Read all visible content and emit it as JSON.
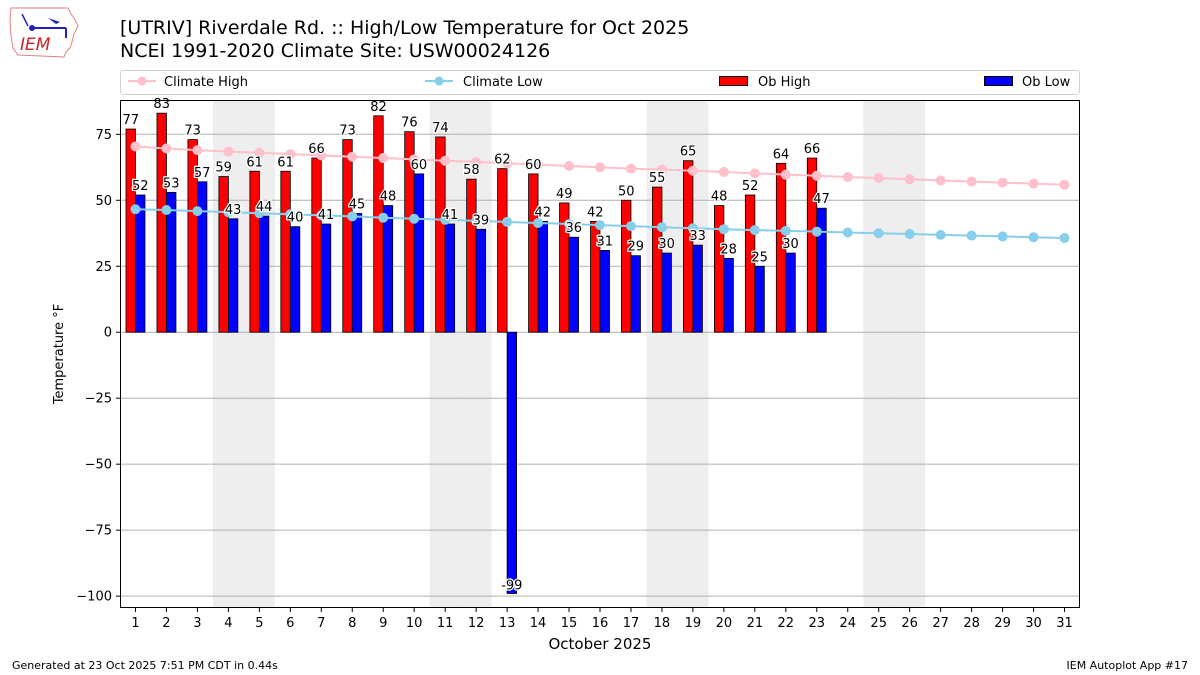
{
  "header": {
    "title_line1": "[UTRIV] Riverdale Rd.  :: High/Low Temperature for Oct 2025",
    "title_line2": "NCEI 1991-2020 Climate Site: USW00024126",
    "logo_text": "IEM"
  },
  "footer": {
    "left": "Generated at 23 Oct 2025 7:51 PM CDT in 0.44s",
    "right": "IEM Autoplot App #17"
  },
  "colors": {
    "ob_high": "#ff0000",
    "ob_low": "#0000ff",
    "climate_high": "#ffc0cb",
    "climate_low": "#87ceeb",
    "weekend_shade": "#eeeeee"
  },
  "chart_data": {
    "type": "bar",
    "xlabel": "October 2025",
    "ylabel": "Temperature °F",
    "ylim": [
      -104.5,
      88
    ],
    "xlim": [
      0.5,
      31.5
    ],
    "yticks": [
      -100,
      -75,
      -50,
      -25,
      0,
      25,
      50,
      75
    ],
    "grid": "horizontal",
    "legend_placement": "top",
    "weekend_shaded_days": [
      4,
      5,
      11,
      12,
      18,
      19,
      25,
      26
    ],
    "days": [
      1,
      2,
      3,
      4,
      5,
      6,
      7,
      8,
      9,
      10,
      11,
      12,
      13,
      14,
      15,
      16,
      17,
      18,
      19,
      20,
      21,
      22,
      23,
      24,
      25,
      26,
      27,
      28,
      29,
      30,
      31
    ],
    "series": [
      {
        "name": "Climate High",
        "type": "line",
        "values": [
          70.4,
          69.6,
          69.0,
          68.5,
          68.0,
          67.5,
          67.0,
          66.5,
          66.0,
          65.5,
          65.0,
          64.5,
          64.0,
          63.5,
          63.0,
          62.5,
          62.0,
          61.6,
          61.2,
          60.7,
          60.2,
          59.7,
          59.3,
          58.8,
          58.4,
          58.0,
          57.5,
          57.1,
          56.7,
          56.3,
          55.9
        ]
      },
      {
        "name": "Climate Low",
        "type": "line",
        "values": [
          46.6,
          46.3,
          45.9,
          45.5,
          45.1,
          44.7,
          44.3,
          43.9,
          43.4,
          43.0,
          42.6,
          42.2,
          41.8,
          41.4,
          41.0,
          40.6,
          40.2,
          39.8,
          39.4,
          39.0,
          38.7,
          38.4,
          38.1,
          37.8,
          37.5,
          37.2,
          36.9,
          36.6,
          36.3,
          36.0,
          35.7
        ]
      },
      {
        "name": "Ob High",
        "type": "bar",
        "values": [
          77,
          83,
          73,
          59,
          61,
          61,
          66,
          73,
          82,
          76,
          74,
          58,
          62,
          60,
          49,
          42,
          50,
          55,
          65,
          48,
          52,
          64,
          66
        ]
      },
      {
        "name": "Ob Low",
        "type": "bar",
        "values": [
          52,
          53,
          57,
          43,
          44,
          40,
          41,
          45,
          48,
          60,
          41,
          39,
          -99,
          42,
          36,
          31,
          29,
          30,
          33,
          28,
          25,
          30,
          47
        ]
      }
    ]
  }
}
